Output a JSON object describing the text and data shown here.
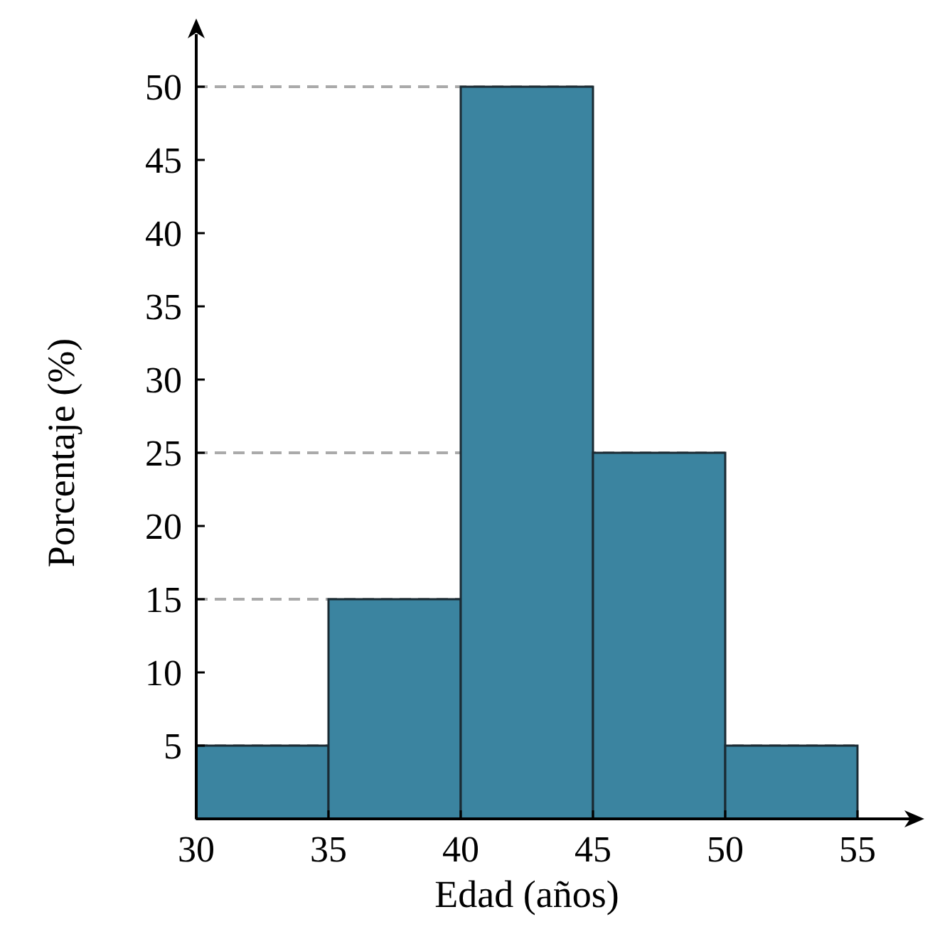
{
  "chart_data": {
    "type": "histogram",
    "xlabel": "Edad (años)",
    "ylabel": "Porcentaje (%)",
    "bins": [
      30,
      35,
      40,
      45,
      50,
      55
    ],
    "values": [
      5,
      15,
      50,
      25,
      5
    ],
    "color": "#3b84a0",
    "xlim": [
      30,
      55
    ],
    "xticks": [
      30,
      35,
      40,
      45,
      50,
      55
    ],
    "ylim": [
      0,
      50
    ],
    "yticks": [
      5,
      10,
      15,
      20,
      25,
      30,
      35,
      40,
      45,
      50
    ],
    "ref_lines": [
      {
        "axis": "y",
        "value": 50,
        "color": "#aaaaaa",
        "line_style": "dashed"
      },
      {
        "axis": "y",
        "value": 25,
        "color": "#aaaaaa",
        "line_style": "dashed"
      },
      {
        "axis": "y",
        "value": 15,
        "color": "#aaaaaa",
        "line_style": "dashed"
      },
      {
        "axis": "y",
        "value": 5,
        "color": "#aaaaaa",
        "line_style": "dashed"
      }
    ]
  }
}
